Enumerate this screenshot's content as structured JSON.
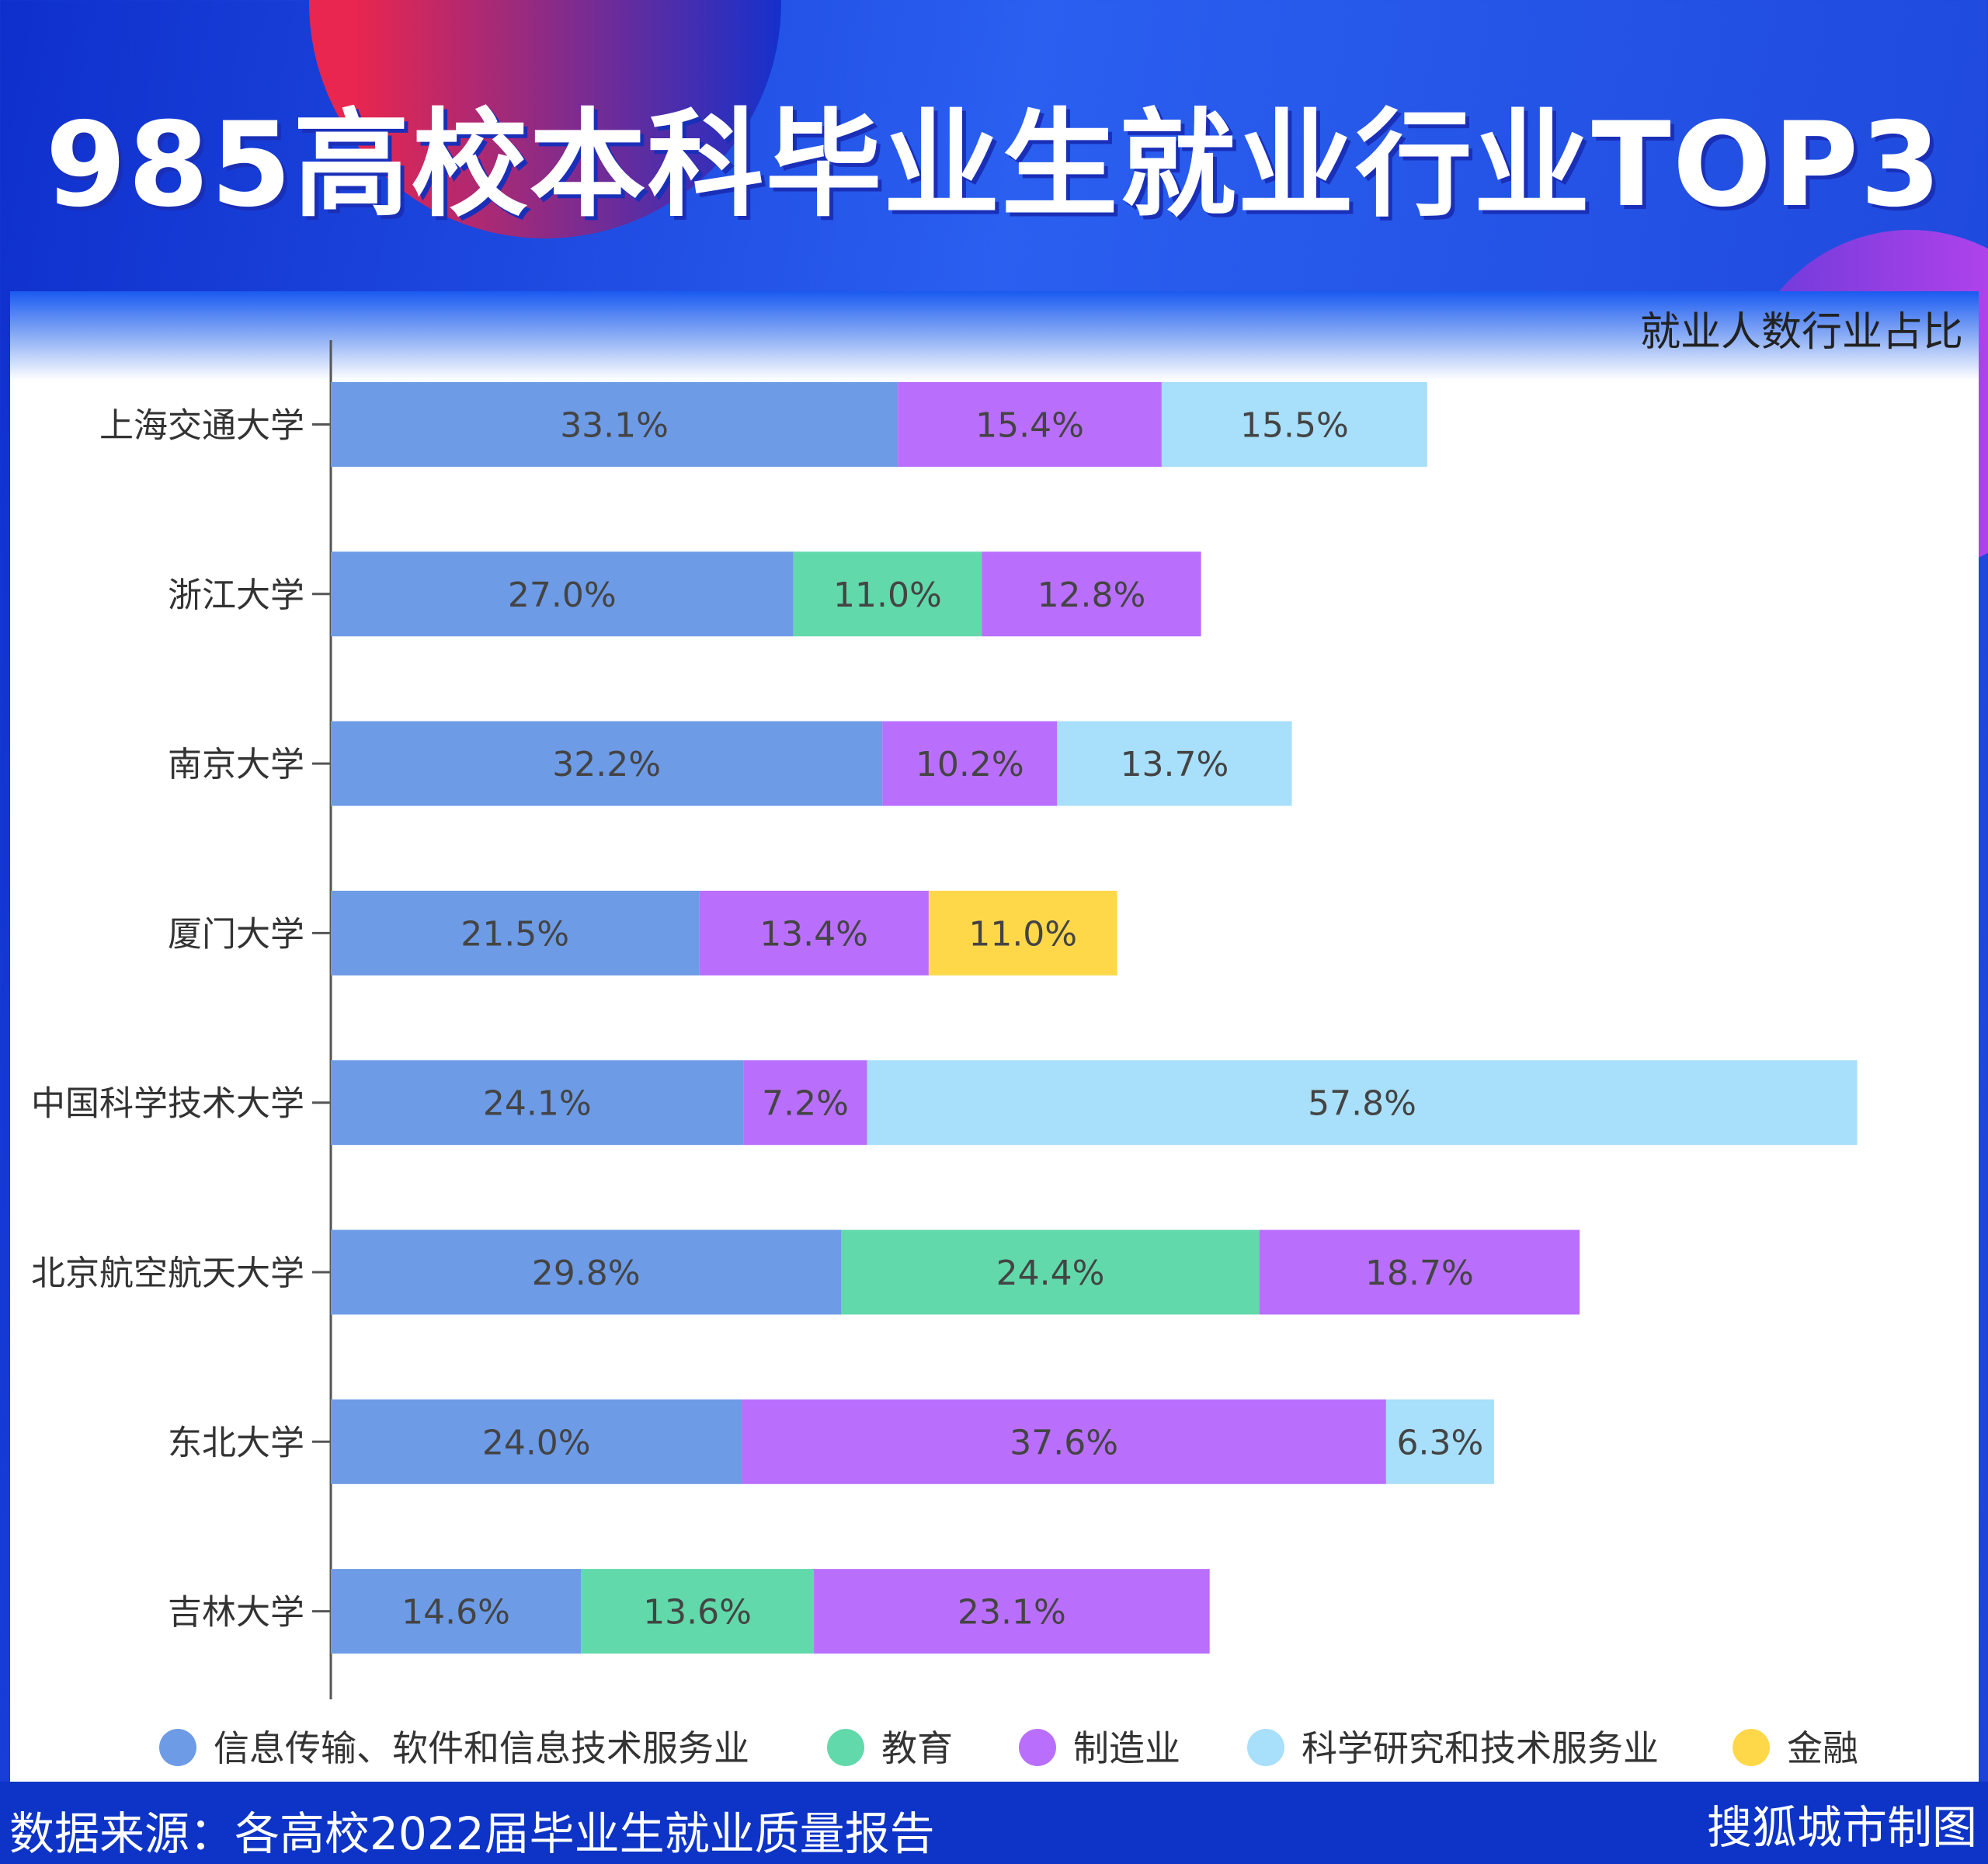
{
  "title": "985高校本科毕业生就业行业TOP3",
  "footer": {
    "source": "数据来源：各高校2022届毕业生就业质量报告",
    "credit": "搜狐城市制图"
  },
  "chart_data": {
    "type": "bar",
    "orientation": "horizontal",
    "stacked": true,
    "title": "就业人数行业占比",
    "unit": "%",
    "categories": [
      "上海交通大学",
      "浙江大学",
      "南京大学",
      "厦门大学",
      "中国科学技术大学",
      "北京航空航天大学",
      "东北大学",
      "吉林大学"
    ],
    "legend_position": "bottom",
    "grid": false,
    "series": [
      {
        "name": "信息传输、软件和信息技术服务业",
        "color": "#6d9be6",
        "values": [
          33.1,
          27.0,
          32.2,
          21.5,
          24.1,
          29.8,
          24.0,
          14.6
        ]
      },
      {
        "name": "教育",
        "color": "#62d9ab",
        "values": [
          null,
          11.0,
          null,
          null,
          null,
          24.4,
          null,
          13.6
        ]
      },
      {
        "name": "制造业",
        "color": "#b96ffc",
        "values": [
          15.4,
          12.8,
          10.2,
          13.4,
          7.2,
          18.7,
          37.6,
          23.1
        ]
      },
      {
        "name": "科学研究和技术服务业",
        "color": "#a8dffa",
        "values": [
          15.5,
          null,
          13.7,
          null,
          57.8,
          null,
          6.3,
          null
        ]
      },
      {
        "name": "金融",
        "color": "#ffd84a",
        "values": [
          null,
          null,
          null,
          11.0,
          null,
          null,
          null,
          null
        ]
      }
    ]
  }
}
